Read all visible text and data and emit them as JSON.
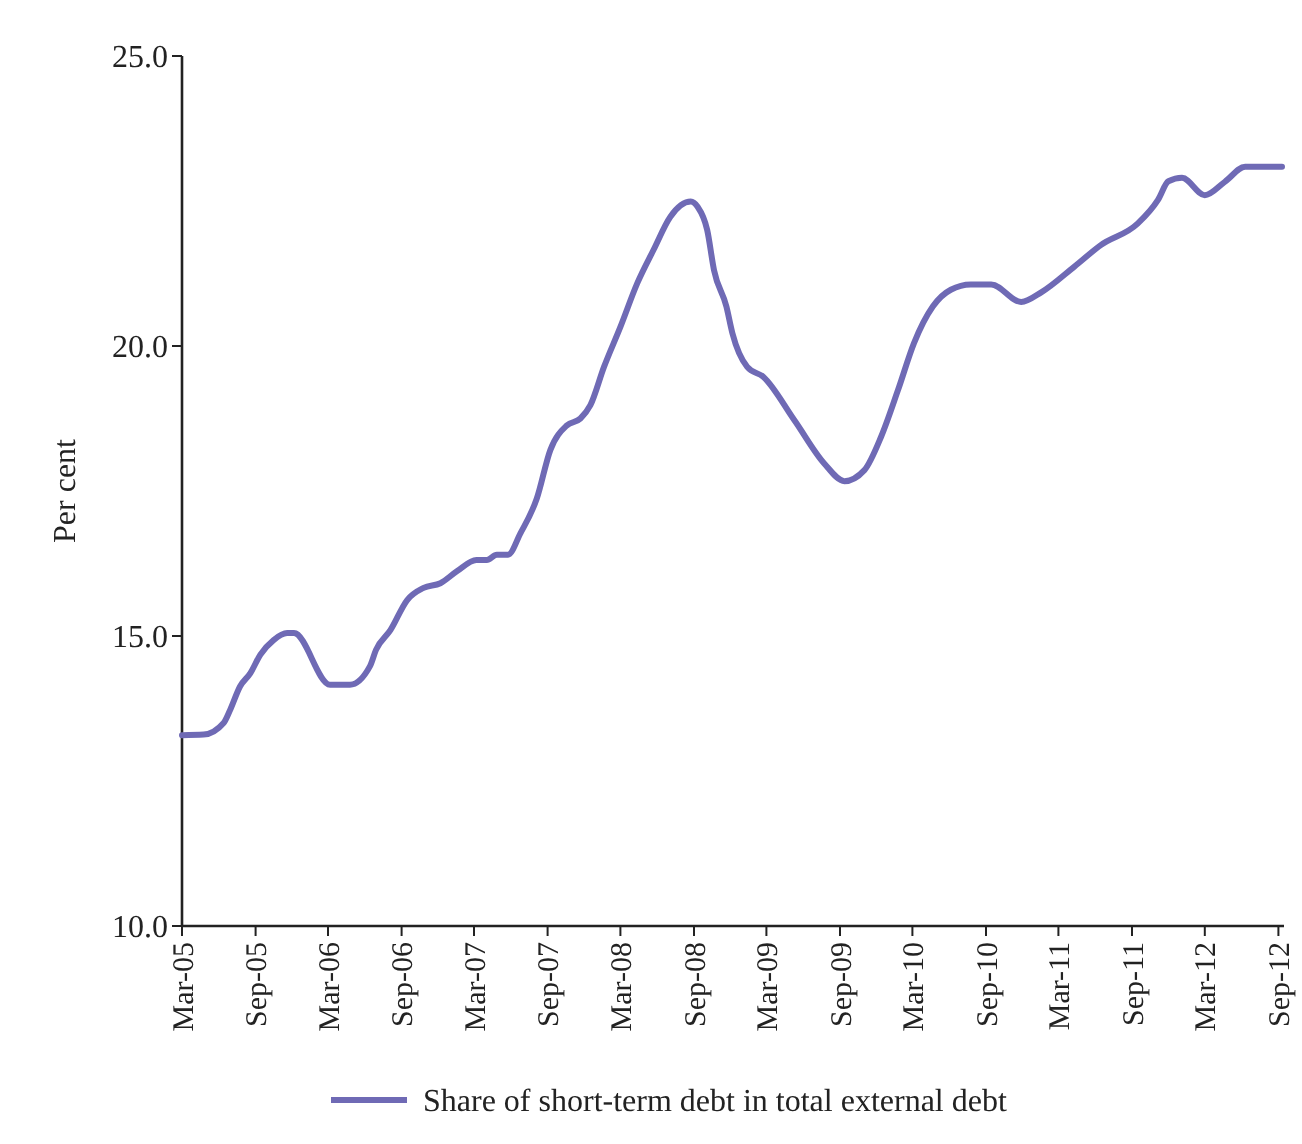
{
  "chart_data": {
    "type": "line",
    "ylabel": "Per cent",
    "x": [
      "2005-03-01",
      "2005-04-24",
      "2005-06-13",
      "2005-06-29",
      "2005-07-24",
      "2005-08-19",
      "2005-09-13",
      "2005-10-16",
      "2005-11-19",
      "2005-12-06",
      "2006-03-06",
      "2006-04-25",
      "2006-06-14",
      "2006-06-29",
      "2006-08-04",
      "2006-09-15",
      "2006-10-26",
      "2006-12-07",
      "2007-01-18",
      "2007-03-07",
      "2007-04-02",
      "2007-04-27",
      "2007-05-25",
      "2007-06-25",
      "2007-08-05",
      "2007-09-08",
      "2007-10-19",
      "2007-11-22",
      "2007-12-17",
      "2008-01-20",
      "2008-03-01",
      "2008-04-12",
      "2008-05-23",
      "2008-07-04",
      "2008-08-24",
      "2008-09-10",
      "2008-10-04",
      "2008-10-21",
      "2008-11-21",
      "2008-12-06",
      "2009-01-12",
      "2009-02-21",
      "2009-05-10",
      "2009-07-23",
      "2009-09-12",
      "2009-11-01",
      "2009-12-13",
      "2010-01-24",
      "2010-03-05",
      "2010-04-21",
      "2010-06-05",
      "2010-07-25",
      "2010-09-14",
      "2010-11-28",
      "2011-01-18",
      "2011-04-10",
      "2011-06-15",
      "2011-09-15",
      "2011-11-05",
      "2011-12-01",
      "2012-01-04",
      "2012-03-01",
      "2012-04-20",
      "2012-06-10",
      "2012-09-10"
    ],
    "series": [
      {
        "name": "Share of short-term debt in total external debt",
        "color": "#6f6ab5",
        "values": [
          13.29,
          13.3,
          13.5,
          13.72,
          14.13,
          14.36,
          14.68,
          14.93,
          15.05,
          15.05,
          14.16,
          14.16,
          14.48,
          14.76,
          15.1,
          15.62,
          15.83,
          15.91,
          16.12,
          16.31,
          16.31,
          16.4,
          16.4,
          16.77,
          17.37,
          18.21,
          18.63,
          18.75,
          18.98,
          19.64,
          20.33,
          21.08,
          21.66,
          22.23,
          22.49,
          22.4,
          22.0,
          21.31,
          20.68,
          20.22,
          19.64,
          19.47,
          18.72,
          17.98,
          17.67,
          17.86,
          18.44,
          19.24,
          20.05,
          20.68,
          20.97,
          21.06,
          21.06,
          20.76,
          20.93,
          21.37,
          21.74,
          22.11,
          22.52,
          22.84,
          22.9,
          22.6,
          22.83,
          23.09,
          23.09
        ]
      }
    ],
    "xlim": [
      "2005-03-01",
      "2012-09-15"
    ],
    "xticks": [
      {
        "value": "2005-03",
        "label": "Mar-05"
      },
      {
        "value": "2005-09",
        "label": "Sep-05"
      },
      {
        "value": "2006-03",
        "label": "Mar-06"
      },
      {
        "value": "2006-09",
        "label": "Sep-06"
      },
      {
        "value": "2007-03",
        "label": "Mar-07"
      },
      {
        "value": "2007-09",
        "label": "Sep-07"
      },
      {
        "value": "2008-03",
        "label": "Mar-08"
      },
      {
        "value": "2008-09",
        "label": "Sep-08"
      },
      {
        "value": "2009-03",
        "label": "Mar-09"
      },
      {
        "value": "2009-09",
        "label": "Sep-09"
      },
      {
        "value": "2010-03",
        "label": "Mar-10"
      },
      {
        "value": "2010-09",
        "label": "Sep-10"
      },
      {
        "value": "2011-03",
        "label": "Mar-11"
      },
      {
        "value": "2011-09",
        "label": "Sep-11"
      },
      {
        "value": "2012-03",
        "label": "Mar-12"
      },
      {
        "value": "2012-09",
        "label": "Sep-12"
      }
    ],
    "ylim": [
      10,
      25
    ],
    "yticks": [
      {
        "value": 10,
        "label": "10.0"
      },
      {
        "value": 15,
        "label": "15.0"
      },
      {
        "value": 20,
        "label": "20.0"
      },
      {
        "value": 25,
        "label": "25.0"
      }
    ],
    "grid": false,
    "legend": "bottom",
    "marker": "none",
    "line_style": "solid"
  }
}
